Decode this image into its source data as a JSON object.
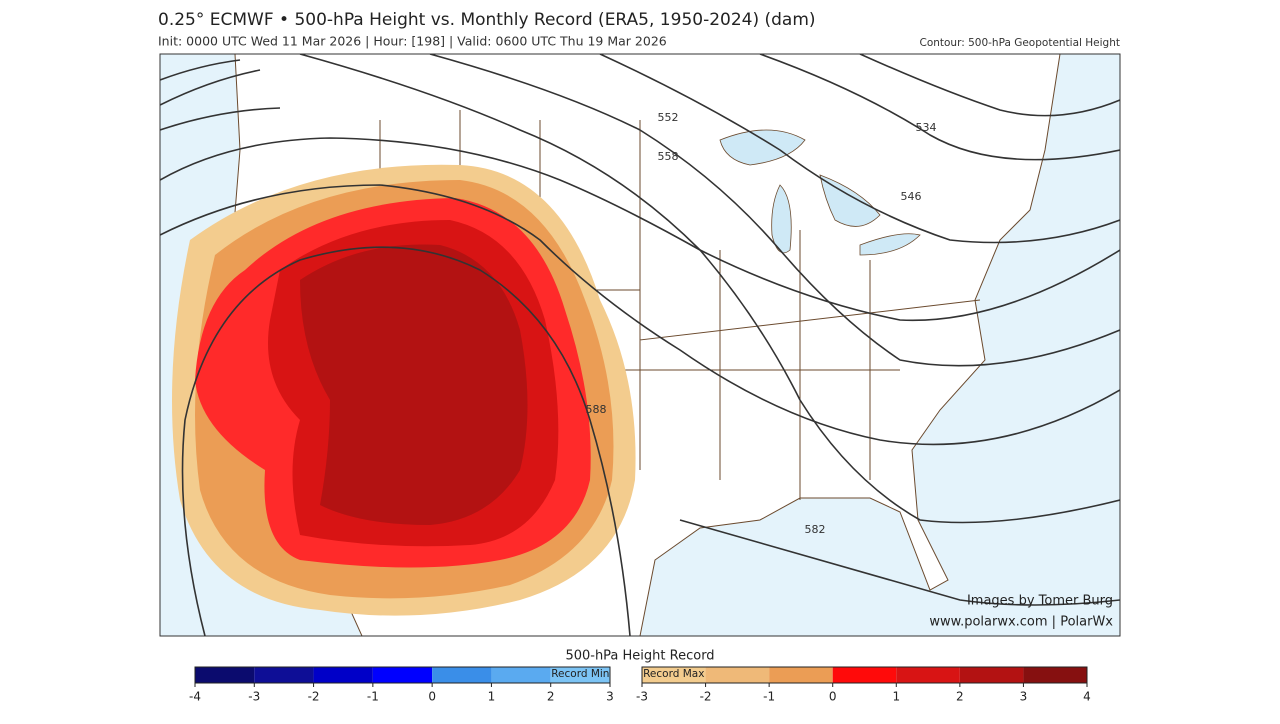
{
  "header": {
    "title": "0.25° ECMWF • 500-hPa Height vs. Monthly Record (ERA5, 1950-2024) (dam)",
    "subtitle": "Init: 0000 UTC Wed 11 Mar 2026 | Hour: [198] | Valid: 0600 UTC Thu 19 Mar 2026",
    "contour_note": "Contour: 500-hPa Geopotential Height"
  },
  "map": {
    "contour_labels": [
      "552",
      "558",
      "534",
      "546",
      "588",
      "582"
    ],
    "credit": "Images by Tomer Burg",
    "website": "www.polarwx.com | PolarWx"
  },
  "colorbar": {
    "title": "500-hPa Height Record",
    "min": {
      "label": "Record Min",
      "ticks": [
        -4,
        -3,
        -2,
        -1,
        0,
        1,
        2,
        3
      ],
      "colors": [
        "#0b0b6e",
        "#0e0e96",
        "#0000c8",
        "#0000ff",
        "#3a8ee8",
        "#5aaaf0",
        "#7cc4f5"
      ]
    },
    "max": {
      "label": "Record Max",
      "ticks": [
        -3,
        -2,
        -1,
        0,
        1,
        2,
        3,
        4
      ],
      "colors": [
        "#f3cc8e",
        "#efb978",
        "#eb9d55",
        "#ff0a0a",
        "#d81414",
        "#b31212",
        "#861010"
      ]
    }
  }
}
